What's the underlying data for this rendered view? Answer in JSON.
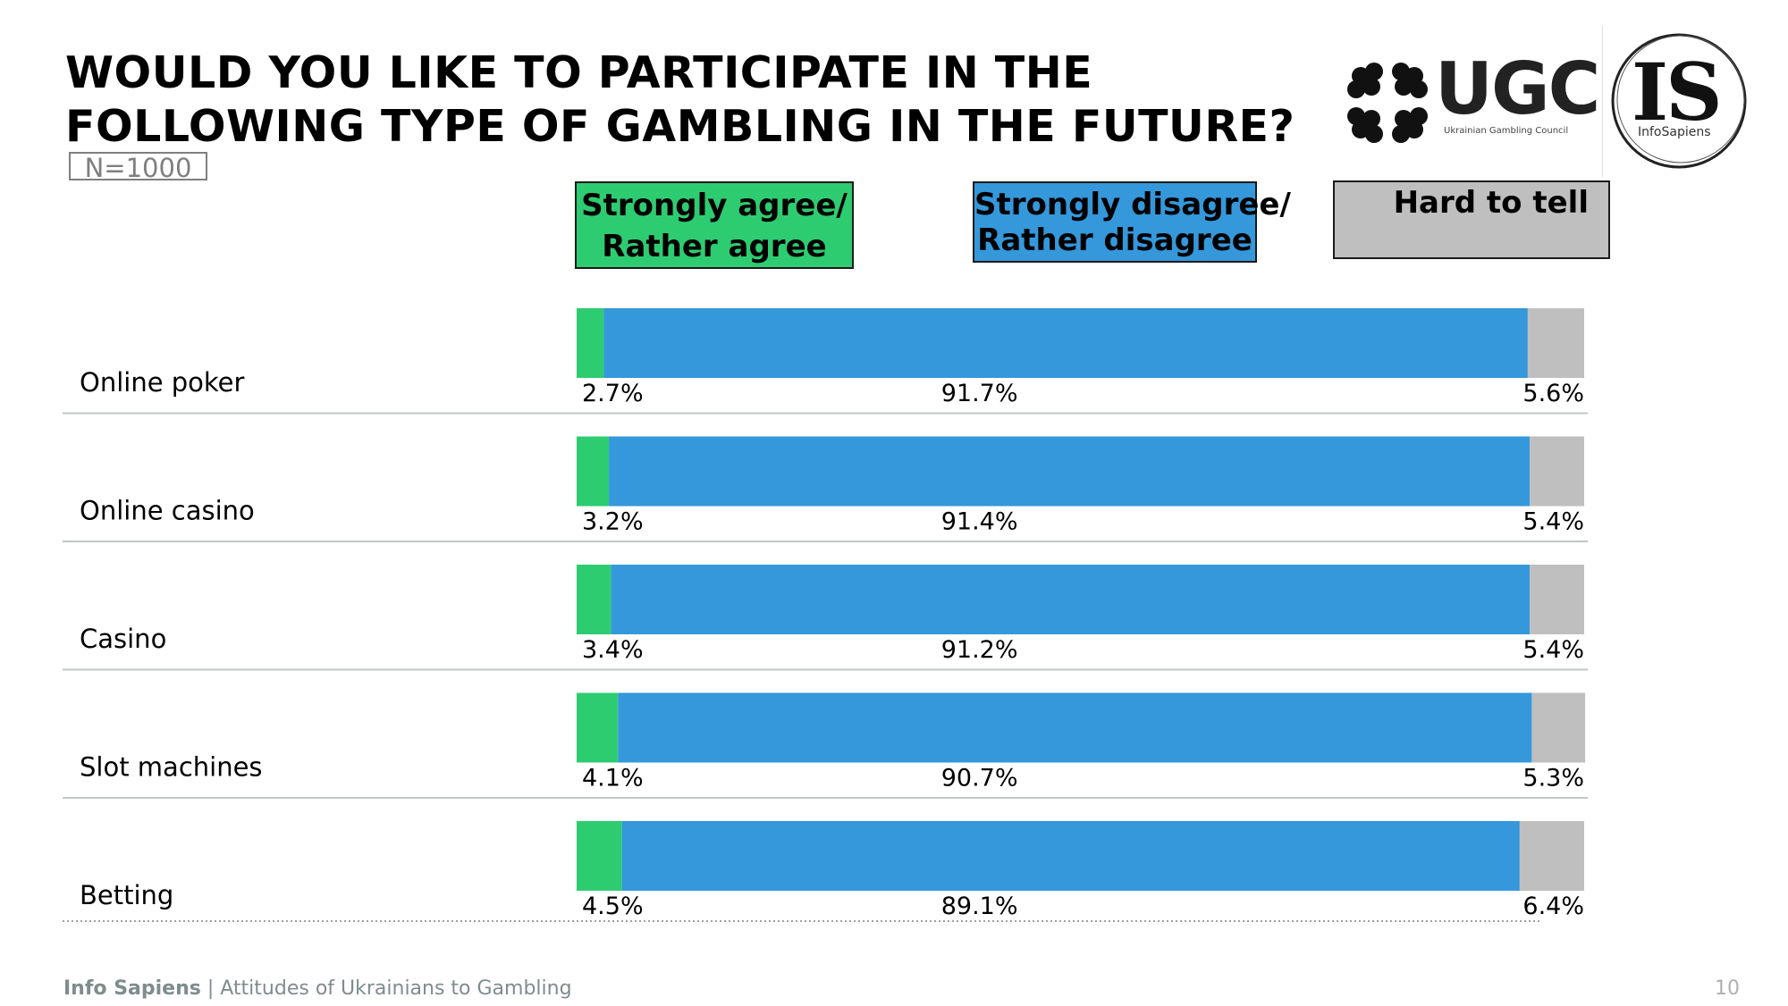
{
  "title": {
    "line1": "WOULD YOU LIKE TO PARTICIPATE IN THE",
    "line2": "FOLLOWING TYPE OF GAMBLING IN THE FUTURE?"
  },
  "sample": "N=1000",
  "logos": {
    "ugc_text": "UGC",
    "ugc_sub": "Ukrainian Gambling Council",
    "is_text": "IS",
    "is_sub": "InfoSapiens"
  },
  "legend": {
    "agree_line1": "Strongly agree/",
    "agree_line2": "Rather agree",
    "disagree_line1": "Strongly disagree/",
    "disagree_line2": "Rather disagree",
    "hard": "Hard to tell"
  },
  "colors": {
    "agree": "#2ecc71",
    "disagree": "#3498db",
    "hard": "#bfbfbf",
    "separator": "#bfc7c7"
  },
  "chart_data": {
    "type": "bar",
    "orientation": "horizontal",
    "stacked": true,
    "categories": [
      "Online poker",
      "Online casino",
      "Casino",
      "Slot machines",
      "Betting"
    ],
    "series": [
      {
        "name": "Strongly agree/ Rather agree",
        "values": [
          2.7,
          3.2,
          3.4,
          4.1,
          4.5
        ],
        "labels": [
          "2.7%",
          "3.2%",
          "3.4%",
          "4.1%",
          "4.5%"
        ]
      },
      {
        "name": "Strongly disagree/ Rather disagree",
        "values": [
          91.7,
          91.4,
          91.2,
          90.7,
          89.1
        ],
        "labels": [
          "91.7%",
          "91.4%",
          "91.2%",
          "90.7%",
          "89.1%"
        ]
      },
      {
        "name": "Hard to tell",
        "values": [
          5.6,
          5.4,
          5.4,
          5.3,
          6.4
        ],
        "labels": [
          "5.6%",
          "5.4%",
          "5.4%",
          "5.3%",
          "6.4%"
        ]
      }
    ],
    "unit": "%",
    "xlim": [
      0,
      100
    ],
    "legend_position": "top",
    "grid": false
  },
  "footer": {
    "brand": "Info Sapiens",
    "separator": " | ",
    "text": "Attitudes of Ukrainians to Gambling"
  },
  "page_number": "10"
}
